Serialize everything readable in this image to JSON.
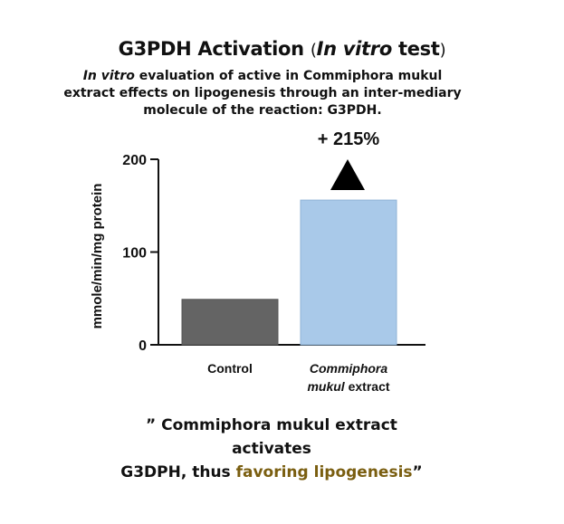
{
  "header": {
    "title_main": "G3PDH Activation",
    "title_paren_open": "(",
    "title_italic": "In vitro",
    "title_test": "test",
    "title_paren_close": ")",
    "subtitle_italic": "In vitro",
    "subtitle_rest": "evaluation of active in Commiphora mukul extract effects on lipogenesis through an inter-mediary molecule of the reaction: G3PDH."
  },
  "chart_data": {
    "type": "bar",
    "categories": [
      "Control",
      "Commiphora mukul extract"
    ],
    "category_lines": [
      [
        "Control"
      ],
      [
        "Commiphora",
        "mukul extract"
      ]
    ],
    "values": [
      49,
      156
    ],
    "ylabel": "mmole/min/mg protein",
    "ylim": [
      0,
      200
    ],
    "yticks": [
      0,
      100,
      200
    ],
    "bar_colors": [
      "#646464",
      "#a9c9e9"
    ],
    "annotation": "+ 215%",
    "annotation_marker": "up-triangle"
  },
  "footer": {
    "quote_line1": "” Commiphora mukul extract",
    "quote_line2": "activates",
    "quote_line3_prefix": "G3DPH, thus ",
    "quote_highlight": "favoring lipogenesis",
    "quote_close": "”",
    "highlight_color": "#7a5e10"
  }
}
